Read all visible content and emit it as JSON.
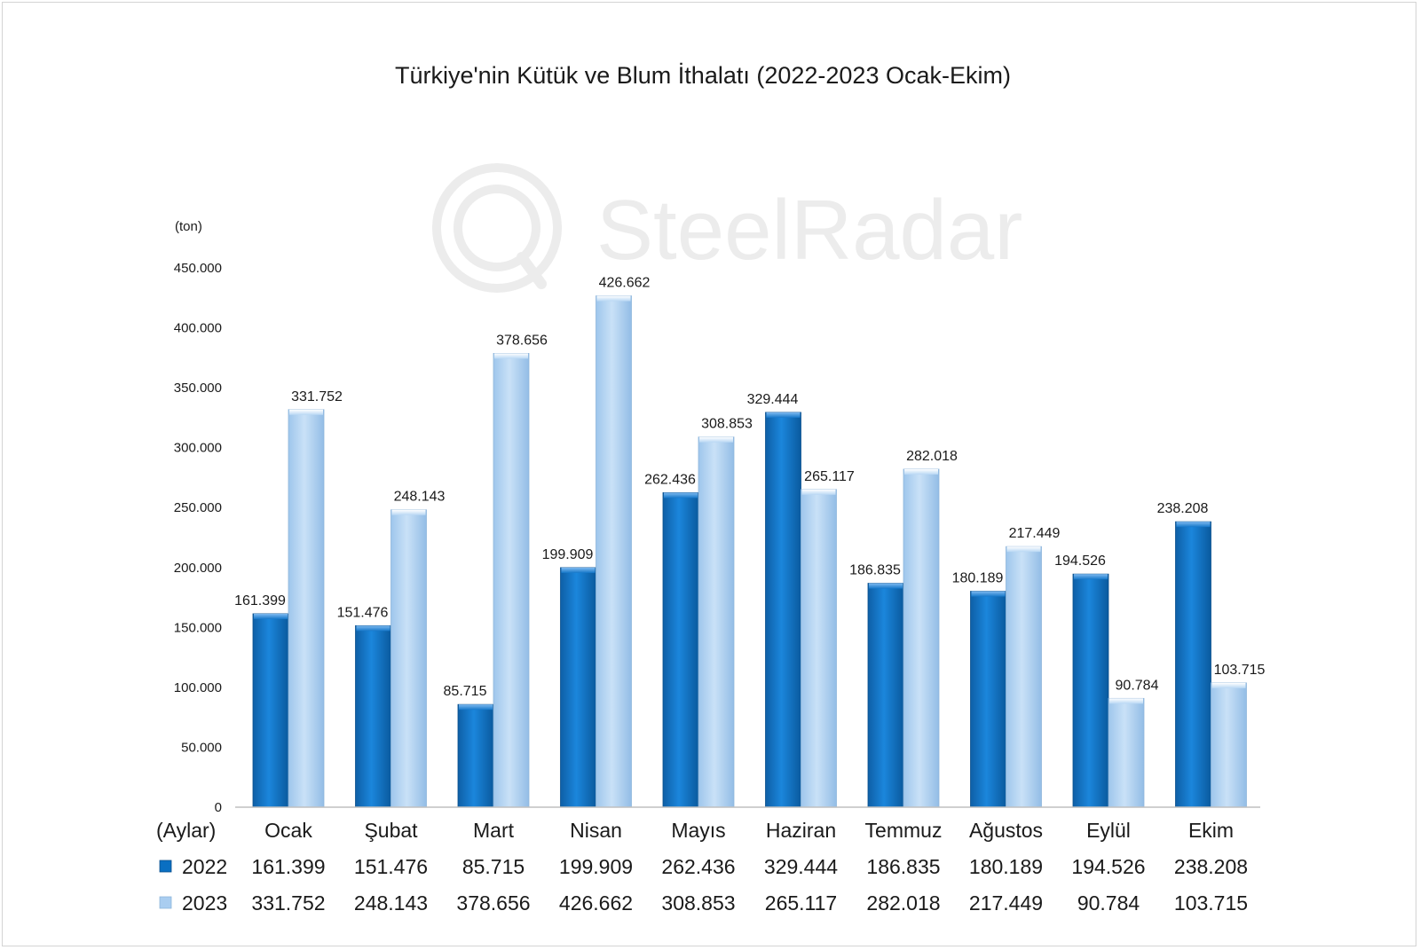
{
  "watermark": "SteelRadar",
  "chart_data": {
    "type": "bar",
    "title": "Türkiye'nin Kütük ve Blum İthalatı (2022-2023 Ocak-Ekim)",
    "ylabel": "(ton)",
    "xlabel": "(Aylar)",
    "ylim": [
      0,
      450000
    ],
    "yticks": [
      0,
      50000,
      100000,
      150000,
      200000,
      250000,
      300000,
      350000,
      400000,
      450000
    ],
    "ytick_labels": [
      "0",
      "50.000",
      "100.000",
      "150.000",
      "200.000",
      "250.000",
      "300.000",
      "350.000",
      "400.000",
      "450.000"
    ],
    "categories": [
      "Ocak",
      "Şubat",
      "Mart",
      "Nisan",
      "Mayıs",
      "Haziran",
      "Temmuz",
      "Ağustos",
      "Eylül",
      "Ekim"
    ],
    "legend_position": "data-table",
    "grid": false,
    "series": [
      {
        "name": "2022",
        "color": "#0a6fc2",
        "values": [
          161399,
          151476,
          85715,
          199909,
          262436,
          329444,
          186835,
          180189,
          194526,
          238208
        ],
        "labels": [
          "161.399",
          "151.476",
          "85.715",
          "199.909",
          "262.436",
          "329.444",
          "186.835",
          "180.189",
          "194.526",
          "238.208"
        ]
      },
      {
        "name": "2023",
        "color": "#a9cdf0",
        "values": [
          331752,
          248143,
          378656,
          426662,
          308853,
          265117,
          282018,
          217449,
          90784,
          103715
        ],
        "labels": [
          "331.752",
          "248.143",
          "378.656",
          "426.662",
          "308.853",
          "265.117",
          "282.018",
          "217.449",
          "90.784",
          "103.715"
        ]
      }
    ]
  }
}
